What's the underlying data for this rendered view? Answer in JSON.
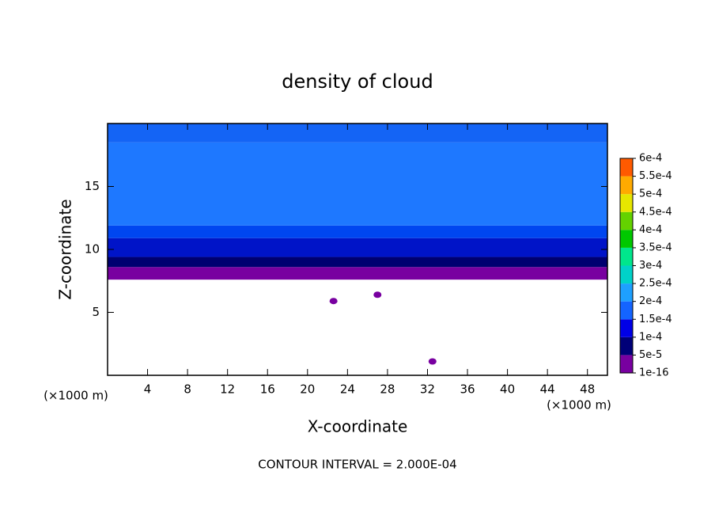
{
  "chart_data": {
    "type": "contour",
    "title": "density of cloud",
    "x_label": "X-coordinate",
    "y_label": "Z-coordinate",
    "x_unit": "(×1000 m)",
    "y_unit": "(×1000 m)",
    "footnote": "CONTOUR INTERVAL = 2.000E-04",
    "xlim": [
      0,
      50
    ],
    "ylim": [
      0,
      20
    ],
    "xticks": [
      4,
      8,
      12,
      16,
      20,
      24,
      28,
      32,
      36,
      40,
      44,
      48
    ],
    "yticks": [
      5,
      10,
      15
    ],
    "regions": [
      {
        "zlim": [
          7.6,
          8.6
        ],
        "color": "#7800a0"
      },
      {
        "zlim": [
          8.6,
          9.4
        ],
        "color": "#000070"
      },
      {
        "zlim": [
          9.4,
          10.9
        ],
        "color": "#0014c8"
      },
      {
        "zlim": [
          10.9,
          11.9
        ],
        "color": "#0046f0"
      },
      {
        "zlim": [
          11.9,
          18.5
        ],
        "color": "#1e78ff"
      },
      {
        "zlim": [
          18.5,
          20
        ],
        "color": "#1464f5"
      }
    ],
    "patches": [
      {
        "x": 22.6,
        "z": 5.9,
        "color": "#7800a0"
      },
      {
        "x": 27,
        "z": 6.4,
        "color": "#7800a0"
      },
      {
        "x": 32.5,
        "z": 1.1,
        "color": "#7800a0"
      }
    ],
    "colorbar": {
      "levels": [
        {
          "value": 1e-16,
          "label": "1e-16"
        },
        {
          "value": 5e-05,
          "label": "5e-5"
        },
        {
          "value": 0.0001,
          "label": "1e-4"
        },
        {
          "value": 0.00015,
          "label": "1.5e-4"
        },
        {
          "value": 0.0002,
          "label": "2e-4"
        },
        {
          "value": 0.00025,
          "label": "2.5e-4"
        },
        {
          "value": 0.0003,
          "label": "3e-4"
        },
        {
          "value": 0.00035,
          "label": "3.5e-4"
        },
        {
          "value": 0.0004,
          "label": "4e-4"
        },
        {
          "value": 0.00045,
          "label": "4.5e-4"
        },
        {
          "value": 0.0005,
          "label": "5e-4"
        },
        {
          "value": 0.00055,
          "label": "5.5e-4"
        },
        {
          "value": 0.0006,
          "label": "6e-4"
        }
      ],
      "colors": [
        "#7800a0",
        "#000078",
        "#0000e6",
        "#1464ff",
        "#1ea0ff",
        "#00d2c8",
        "#00e68c",
        "#00c800",
        "#64d200",
        "#e6e600",
        "#ffaa00",
        "#ff5a00",
        "#ff1e1e",
        "#ff8c8c"
      ]
    }
  }
}
